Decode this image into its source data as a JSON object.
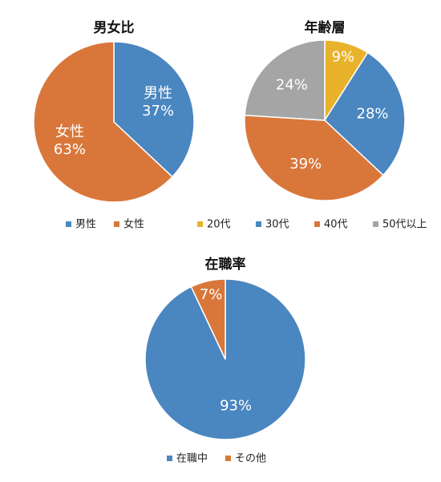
{
  "chart_data": [
    {
      "type": "pie",
      "title": "男女比",
      "categories": [
        "男性",
        "女性"
      ],
      "values": [
        37,
        63
      ],
      "value_labels": [
        "37%",
        "63%"
      ],
      "colors": [
        "#4a86c0",
        "#d9773a"
      ],
      "label_shows_category": true
    },
    {
      "type": "pie",
      "title": "年齢層",
      "categories": [
        "20代",
        "30代",
        "40代",
        "50代以上"
      ],
      "values": [
        9,
        28,
        39,
        24
      ],
      "value_labels": [
        "9%",
        "28%",
        "39%",
        "24%"
      ],
      "colors": [
        "#e8b32a",
        "#4a86c0",
        "#d9773a",
        "#a5a5a5"
      ],
      "label_shows_category": false
    },
    {
      "type": "pie",
      "title": "在職率",
      "categories": [
        "在職中",
        "その他"
      ],
      "values": [
        93,
        7
      ],
      "value_labels": [
        "93%",
        "7%"
      ],
      "colors": [
        "#4a86c0",
        "#d9773a"
      ],
      "label_shows_category": false
    }
  ]
}
